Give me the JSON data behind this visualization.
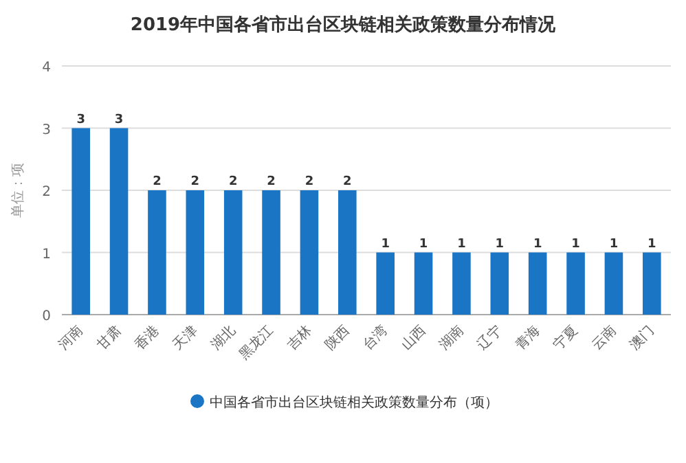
{
  "chart_data": {
    "type": "bar",
    "title": "2019年中国各省市出台区块链相关政策数量分布情况",
    "ylabel": "单位：项",
    "categories": [
      "河南",
      "甘肃",
      "香港",
      "天津",
      "湖北",
      "黑龙江",
      "吉林",
      "陕西",
      "台湾",
      "山西",
      "湖南",
      "辽宁",
      "青海",
      "宁夏",
      "云南",
      "澳门"
    ],
    "series": [
      {
        "name": "中国各省市出台区块链相关政策数量分布（项）",
        "color": "#1a75c4",
        "values": [
          3,
          3,
          2,
          2,
          2,
          2,
          2,
          2,
          1,
          1,
          1,
          1,
          1,
          1,
          1,
          1
        ]
      }
    ],
    "ylim": [
      0,
      4
    ],
    "yticks": [
      0,
      1,
      2,
      3,
      4
    ],
    "grid": "y",
    "legend": "bottom",
    "data_labels": true
  }
}
